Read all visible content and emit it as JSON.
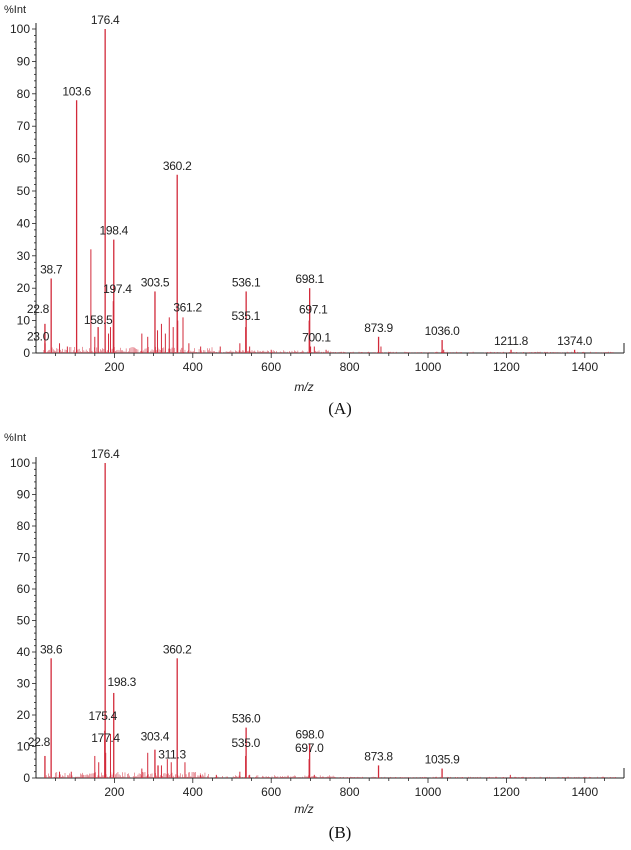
{
  "figure": {
    "panels": [
      "(A)",
      "(B)"
    ]
  },
  "chart_data": [
    {
      "type": "bar",
      "panel_label": "(A)",
      "ylabel": "%Int",
      "xlabel": "m/z",
      "xlim": [
        0,
        1500
      ],
      "ylim": [
        0,
        100
      ],
      "x_ticks": [
        200,
        400,
        600,
        800,
        1000,
        1200,
        1400
      ],
      "y_ticks": [
        0,
        10,
        20,
        30,
        40,
        50,
        60,
        70,
        80,
        90,
        100
      ],
      "peaks": [
        {
          "mz": 23.0,
          "intensity": 3
        },
        {
          "mz": 22.8,
          "intensity": 9
        },
        {
          "mz": 38.7,
          "intensity": 23
        },
        {
          "mz": 103.6,
          "intensity": 78
        },
        {
          "mz": 158.5,
          "intensity": 8
        },
        {
          "mz": 176.4,
          "intensity": 100
        },
        {
          "mz": 197.4,
          "intensity": 16
        },
        {
          "mz": 198.4,
          "intensity": 35
        },
        {
          "mz": 303.5,
          "intensity": 19
        },
        {
          "mz": 360.2,
          "intensity": 55
        },
        {
          "mz": 361.2,
          "intensity": 10
        },
        {
          "mz": 535.1,
          "intensity": 8
        },
        {
          "mz": 536.1,
          "intensity": 19
        },
        {
          "mz": 697.1,
          "intensity": 10
        },
        {
          "mz": 698.1,
          "intensity": 20
        },
        {
          "mz": 700.1,
          "intensity": 2
        },
        {
          "mz": 873.9,
          "intensity": 5
        },
        {
          "mz": 1036.0,
          "intensity": 4
        },
        {
          "mz": 1211.8,
          "intensity": 1
        },
        {
          "mz": 1374.0,
          "intensity": 1
        }
      ],
      "minor_peaks": [
        {
          "mz": 60,
          "intensity": 3
        },
        {
          "mz": 80,
          "intensity": 2
        },
        {
          "mz": 140,
          "intensity": 32
        },
        {
          "mz": 150,
          "intensity": 5
        },
        {
          "mz": 185,
          "intensity": 6
        },
        {
          "mz": 190,
          "intensity": 8
        },
        {
          "mz": 270,
          "intensity": 6
        },
        {
          "mz": 285,
          "intensity": 5
        },
        {
          "mz": 310,
          "intensity": 7
        },
        {
          "mz": 320,
          "intensity": 9
        },
        {
          "mz": 330,
          "intensity": 6
        },
        {
          "mz": 340,
          "intensity": 11
        },
        {
          "mz": 350,
          "intensity": 8
        },
        {
          "mz": 375,
          "intensity": 11
        },
        {
          "mz": 390,
          "intensity": 3
        },
        {
          "mz": 420,
          "intensity": 2
        },
        {
          "mz": 470,
          "intensity": 2
        },
        {
          "mz": 520,
          "intensity": 3
        },
        {
          "mz": 545,
          "intensity": 2
        },
        {
          "mz": 600,
          "intensity": 1
        },
        {
          "mz": 710,
          "intensity": 2
        },
        {
          "mz": 740,
          "intensity": 1
        },
        {
          "mz": 880,
          "intensity": 2
        },
        {
          "mz": 1040,
          "intensity": 1
        }
      ],
      "annotations": [
        {
          "text": "176.4",
          "mz": 176.4,
          "intensity": 100
        },
        {
          "text": "103.6",
          "mz": 103.6,
          "intensity": 78
        },
        {
          "text": "360.2",
          "mz": 360.2,
          "intensity": 55
        },
        {
          "text": "198.4",
          "mz": 198.4,
          "intensity": 35
        },
        {
          "text": "38.7",
          "mz": 38.7,
          "intensity": 23
        },
        {
          "text": "303.5",
          "mz": 303.5,
          "intensity": 19
        },
        {
          "text": "536.1",
          "mz": 536.1,
          "intensity": 19
        },
        {
          "text": "698.1",
          "mz": 698.1,
          "intensity": 20
        },
        {
          "text": "197.4",
          "mz": 197.4,
          "intensity": 16
        },
        {
          "text": "361.2",
          "mz": 361.2,
          "intensity": 10
        },
        {
          "text": "22.8",
          "mz": 22.8,
          "intensity": 9
        },
        {
          "text": "158.5",
          "mz": 158.5,
          "intensity": 8
        },
        {
          "text": "535.1",
          "mz": 535.1,
          "intensity": 8
        },
        {
          "text": "697.1",
          "mz": 697.1,
          "intensity": 10
        },
        {
          "text": "23.0",
          "mz": 23.0,
          "intensity": 3
        },
        {
          "text": "700.1",
          "mz": 700.1,
          "intensity": 2
        },
        {
          "text": "873.9",
          "mz": 873.9,
          "intensity": 5
        },
        {
          "text": "1036.0",
          "mz": 1036.0,
          "intensity": 4
        },
        {
          "text": "1211.8",
          "mz": 1211.8,
          "intensity": 1
        },
        {
          "text": "1374.0",
          "mz": 1374.0,
          "intensity": 1
        }
      ],
      "grid": false,
      "color": "#d22a3a"
    },
    {
      "type": "bar",
      "panel_label": "(B)",
      "ylabel": "%Int",
      "xlabel": "m/z",
      "xlim": [
        0,
        1500
      ],
      "ylim": [
        0,
        100
      ],
      "x_ticks": [
        200,
        400,
        600,
        800,
        1000,
        1200,
        1400
      ],
      "y_ticks": [
        0,
        10,
        20,
        30,
        40,
        50,
        60,
        70,
        80,
        90,
        100
      ],
      "peaks": [
        {
          "mz": 22.8,
          "intensity": 7
        },
        {
          "mz": 38.6,
          "intensity": 38
        },
        {
          "mz": 175.4,
          "intensity": 15
        },
        {
          "mz": 176.4,
          "intensity": 100
        },
        {
          "mz": 177.4,
          "intensity": 8
        },
        {
          "mz": 198.3,
          "intensity": 27
        },
        {
          "mz": 303.4,
          "intensity": 9
        },
        {
          "mz": 311.3,
          "intensity": 4
        },
        {
          "mz": 360.2,
          "intensity": 38
        },
        {
          "mz": 535.0,
          "intensity": 7
        },
        {
          "mz": 536.0,
          "intensity": 16
        },
        {
          "mz": 697.0,
          "intensity": 6
        },
        {
          "mz": 698.0,
          "intensity": 11
        },
        {
          "mz": 873.8,
          "intensity": 4
        },
        {
          "mz": 1035.9,
          "intensity": 3
        }
      ],
      "minor_peaks": [
        {
          "mz": 60,
          "intensity": 2
        },
        {
          "mz": 90,
          "intensity": 2
        },
        {
          "mz": 120,
          "intensity": 1
        },
        {
          "mz": 150,
          "intensity": 7
        },
        {
          "mz": 160,
          "intensity": 5
        },
        {
          "mz": 190,
          "intensity": 14
        },
        {
          "mz": 270,
          "intensity": 3
        },
        {
          "mz": 285,
          "intensity": 8
        },
        {
          "mz": 320,
          "intensity": 4
        },
        {
          "mz": 335,
          "intensity": 6
        },
        {
          "mz": 345,
          "intensity": 5
        },
        {
          "mz": 380,
          "intensity": 5
        },
        {
          "mz": 420,
          "intensity": 1
        },
        {
          "mz": 460,
          "intensity": 1
        },
        {
          "mz": 520,
          "intensity": 2
        },
        {
          "mz": 545,
          "intensity": 1
        },
        {
          "mz": 710,
          "intensity": 1
        },
        {
          "mz": 1210,
          "intensity": 1
        }
      ],
      "annotations": [
        {
          "text": "176.4",
          "mz": 176.4,
          "intensity": 100
        },
        {
          "text": "38.6",
          "mz": 38.6,
          "intensity": 38
        },
        {
          "text": "360.2",
          "mz": 360.2,
          "intensity": 38
        },
        {
          "text": "198.3",
          "mz": 198.3,
          "intensity": 27
        },
        {
          "text": "175.4",
          "mz": 175.4,
          "intensity": 15
        },
        {
          "text": "536.0",
          "mz": 536.0,
          "intensity": 16
        },
        {
          "text": "698.0",
          "mz": 698.0,
          "intensity": 11
        },
        {
          "text": "177.4",
          "mz": 177.4,
          "intensity": 8
        },
        {
          "text": "303.4",
          "mz": 303.4,
          "intensity": 9
        },
        {
          "text": "311.3",
          "mz": 311.3,
          "intensity": 4
        },
        {
          "text": "22.8",
          "mz": 22.8,
          "intensity": 7
        },
        {
          "text": "535.0",
          "mz": 535.0,
          "intensity": 7
        },
        {
          "text": "697.0",
          "mz": 697.0,
          "intensity": 6
        },
        {
          "text": "873.8",
          "mz": 873.8,
          "intensity": 4
        },
        {
          "text": "1035.9",
          "mz": 1035.9,
          "intensity": 3
        }
      ],
      "grid": false,
      "color": "#d22a3a"
    }
  ]
}
